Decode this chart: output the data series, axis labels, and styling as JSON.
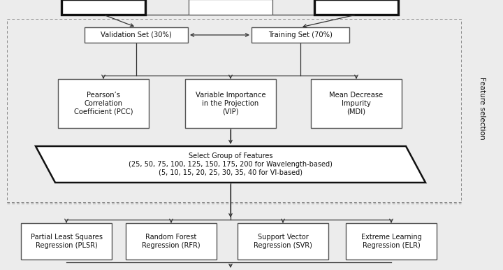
{
  "bg_color": "#ececec",
  "box_facecolor": "#ffffff",
  "box_edgecolor": "#555555",
  "bold_edgecolor": "#111111",
  "dashed_color": "#888888",
  "arrow_color": "#333333",
  "text_color": "#111111",
  "fig_width": 7.2,
  "fig_height": 3.86,
  "dpi": 100,
  "label_feature_selection": "Feature selection",
  "val_label": "Validation Set (30%)",
  "train_label": "Training Set (70%)",
  "pcc_label": "Pearson’s\nCorrelation\nCoefficient (PCC)",
  "vip_label": "Variable Importance\nin the Projection\n(VIP)",
  "mdi_label": "Mean Decrease\nImpurity\n(MDI)",
  "sel_label": "Select Group of Features\n(25, 50, 75, 100, 125, 150, 175, 200 for Wavelength-based)\n(5, 10, 15, 20, 25, 30, 35, 40 for VI-based)",
  "plsr_label": "Partial Least Squares\nRegression (PLSR)",
  "rfr_label": "Random Forest\nRegression (RFR)",
  "svr_label": "Support Vector\nRegression (SVR)",
  "elr_label": "Extreme Learning\nRegression (ELR)"
}
